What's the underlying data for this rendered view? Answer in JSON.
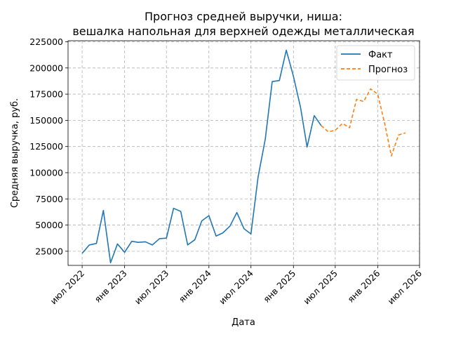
{
  "chart_data": {
    "type": "line",
    "title_lines": [
      "Прогноз средней выручки, ниша:",
      "вешалка напольная для верхней одежды металлическая"
    ],
    "xlabel": "Дата",
    "ylabel": "Средняя выручка, руб.",
    "x_ticks": [
      {
        "date": "2022-07-01",
        "label": "июл 2022"
      },
      {
        "date": "2023-01-01",
        "label": "янв 2023"
      },
      {
        "date": "2023-07-01",
        "label": "июл 2023"
      },
      {
        "date": "2024-01-01",
        "label": "янв 2024"
      },
      {
        "date": "2024-07-01",
        "label": "июл 2024"
      },
      {
        "date": "2025-01-01",
        "label": "янв 2025"
      },
      {
        "date": "2025-07-01",
        "label": "июл 2025"
      },
      {
        "date": "2026-01-01",
        "label": "янв 2026"
      },
      {
        "date": "2026-07-01",
        "label": "июл 2026"
      }
    ],
    "xlim": [
      "2022-05-01",
      "2026-07-01"
    ],
    "y_ticks": [
      {
        "value": 25000,
        "label": "25000"
      },
      {
        "value": 50000,
        "label": "50000"
      },
      {
        "value": 75000,
        "label": "75000"
      },
      {
        "value": 100000,
        "label": "100000"
      },
      {
        "value": 125000,
        "label": "125000"
      },
      {
        "value": 150000,
        "label": "150000"
      },
      {
        "value": 175000,
        "label": "175000"
      },
      {
        "value": 200000,
        "label": "200000"
      },
      {
        "value": 225000,
        "label": "225000"
      }
    ],
    "ylim": [
      11500,
      226000
    ],
    "grid": true,
    "legend_position": "top-right",
    "series": [
      {
        "name": "Факт",
        "color": "#1f77b4",
        "style": "solid",
        "points": [
          {
            "x": "2022-07-01",
            "y": 23000
          },
          {
            "x": "2022-08-01",
            "y": 31000
          },
          {
            "x": "2022-09-01",
            "y": 32500
          },
          {
            "x": "2022-10-01",
            "y": 64000
          },
          {
            "x": "2022-11-01",
            "y": 14000
          },
          {
            "x": "2022-12-01",
            "y": 32000
          },
          {
            "x": "2023-01-01",
            "y": 24000
          },
          {
            "x": "2023-02-01",
            "y": 34500
          },
          {
            "x": "2023-03-01",
            "y": 33500
          },
          {
            "x": "2023-04-01",
            "y": 34000
          },
          {
            "x": "2023-05-01",
            "y": 31000
          },
          {
            "x": "2023-06-01",
            "y": 37000
          },
          {
            "x": "2023-07-01",
            "y": 37500
          },
          {
            "x": "2023-08-01",
            "y": 66000
          },
          {
            "x": "2023-09-01",
            "y": 63000
          },
          {
            "x": "2023-10-01",
            "y": 31000
          },
          {
            "x": "2023-11-01",
            "y": 36000
          },
          {
            "x": "2023-12-01",
            "y": 54000
          },
          {
            "x": "2024-01-01",
            "y": 59000
          },
          {
            "x": "2024-02-01",
            "y": 39500
          },
          {
            "x": "2024-03-01",
            "y": 42500
          },
          {
            "x": "2024-04-01",
            "y": 49000
          },
          {
            "x": "2024-05-01",
            "y": 62000
          },
          {
            "x": "2024-06-01",
            "y": 46500
          },
          {
            "x": "2024-07-01",
            "y": 41500
          },
          {
            "x": "2024-08-01",
            "y": 96000
          },
          {
            "x": "2024-09-01",
            "y": 132000
          },
          {
            "x": "2024-10-01",
            "y": 187000
          },
          {
            "x": "2024-11-01",
            "y": 188000
          },
          {
            "x": "2024-12-01",
            "y": 217000
          },
          {
            "x": "2025-01-01",
            "y": 192000
          },
          {
            "x": "2025-02-01",
            "y": 162000
          },
          {
            "x": "2025-03-01",
            "y": 124500
          },
          {
            "x": "2025-04-01",
            "y": 154500
          },
          {
            "x": "2025-05-01",
            "y": 145000
          }
        ]
      },
      {
        "name": "Прогноз",
        "color": "#ff7f0e",
        "style": "dashed",
        "points": [
          {
            "x": "2025-05-01",
            "y": 145000
          },
          {
            "x": "2025-06-01",
            "y": 139000
          },
          {
            "x": "2025-07-01",
            "y": 140500
          },
          {
            "x": "2025-08-01",
            "y": 147000
          },
          {
            "x": "2025-09-01",
            "y": 143000
          },
          {
            "x": "2025-10-01",
            "y": 170000
          },
          {
            "x": "2025-11-01",
            "y": 168000
          },
          {
            "x": "2025-12-01",
            "y": 180000
          },
          {
            "x": "2026-01-01",
            "y": 175000
          },
          {
            "x": "2026-02-01",
            "y": 146000
          },
          {
            "x": "2026-03-01",
            "y": 116000
          },
          {
            "x": "2026-04-01",
            "y": 136000
          },
          {
            "x": "2026-05-01",
            "y": 138000
          }
        ]
      }
    ]
  }
}
